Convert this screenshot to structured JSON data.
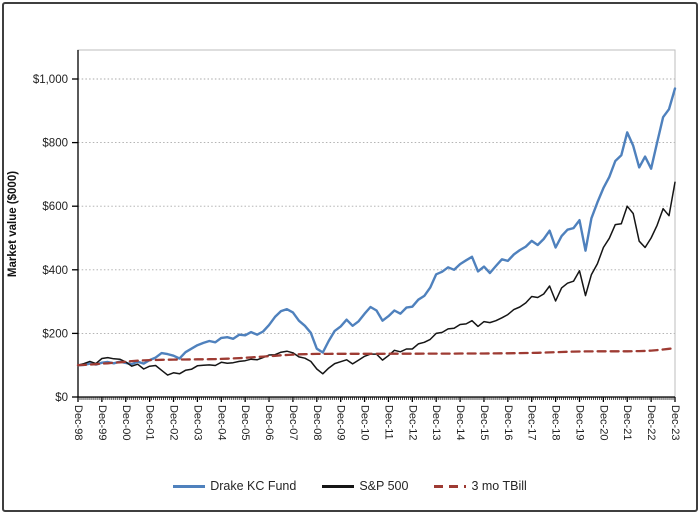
{
  "chart_data": {
    "type": "line",
    "title": "",
    "xlabel": "",
    "ylabel": "Market value ($000)",
    "ylim": [
      0,
      1100
    ],
    "grid": "horizontal-dotted",
    "legend_position": "bottom",
    "x_range": [
      "Dec-98",
      "Dec-23"
    ],
    "x_points_per_year": 4,
    "x_label_rotation": 90,
    "minor_ticks_per_major": 12,
    "y_ticks": [
      {
        "value": 0,
        "label": "$0"
      },
      {
        "value": 200,
        "label": "$200"
      },
      {
        "value": 400,
        "label": "$400"
      },
      {
        "value": 600,
        "label": "$600"
      },
      {
        "value": 800,
        "label": "$800"
      },
      {
        "value": 1000,
        "label": "$1,000"
      }
    ],
    "x_tick_labels": [
      "Dec-98",
      "Dec-99",
      "Dec-00",
      "Dec-01",
      "Dec-02",
      "Dec-03",
      "Dec-04",
      "Dec-05",
      "Dec-06",
      "Dec-07",
      "Dec-08",
      "Dec-09",
      "Dec-10",
      "Dec-11",
      "Dec-12",
      "Dec-13",
      "Dec-14",
      "Dec-15",
      "Dec-16",
      "Dec-17",
      "Dec-18",
      "Dec-19",
      "Dec-20",
      "Dec-21",
      "Dec-22",
      "Dec-23"
    ],
    "series": [
      {
        "name": "Drake KC Fund",
        "slug": "drake-kc-fund",
        "color": "#4F81BD",
        "line_style": "solid",
        "stroke_width": 2.4,
        "values": [
          100,
          101,
          105,
          102,
          108,
          110,
          106,
          111,
          107,
          103,
          111,
          105,
          116,
          124,
          138,
          135,
          130,
          121,
          141,
          152,
          163,
          170,
          176,
          172,
          186,
          188,
          183,
          196,
          194,
          204,
          196,
          206,
          226,
          252,
          270,
          276,
          266,
          240,
          224,
          202,
          152,
          140,
          176,
          208,
          222,
          243,
          224,
          238,
          262,
          283,
          272,
          240,
          254,
          272,
          262,
          281,
          284,
          306,
          318,
          344,
          386,
          394,
          408,
          400,
          418,
          430,
          441,
          395,
          410,
          390,
          412,
          433,
          428,
          448,
          462,
          473,
          491,
          478,
          497,
          523,
          470,
          506,
          526,
          531,
          556,
          460,
          562,
          612,
          657,
          692,
          742,
          760,
          832,
          790,
          722,
          756,
          718,
          800,
          880,
          905,
          970
        ]
      },
      {
        "name": "S&P 500",
        "slug": "sp-500",
        "color": "#151515",
        "line_style": "solid",
        "stroke_width": 1.5,
        "values": [
          100,
          105,
          112,
          105,
          121,
          124,
          120,
          119,
          110,
          97,
          103,
          88,
          97,
          99,
          84,
          69,
          76,
          73,
          84,
          87,
          98,
          100,
          101,
          99,
          109,
          106,
          108,
          112,
          114,
          119,
          117,
          124,
          132,
          133,
          141,
          144,
          139,
          126,
          122,
          112,
          88,
          73,
          91,
          105,
          111,
          117,
          104,
          116,
          128,
          135,
          135,
          116,
          130,
          147,
          142,
          151,
          151,
          167,
          172,
          181,
          200,
          203,
          214,
          216,
          228,
          230,
          240,
          222,
          237,
          234,
          240,
          249,
          259,
          275,
          283,
          296,
          316,
          313,
          324,
          349,
          302,
          343,
          358,
          364,
          397,
          319,
          385,
          419,
          470,
          499,
          542,
          545,
          600,
          577,
          490,
          470,
          500,
          540,
          592,
          570,
          675
        ]
      },
      {
        "name": "3 mo TBill",
        "slug": "3-mo-tbill",
        "color": "#9E3B33",
        "line_style": "dashed",
        "stroke_width": 2.3,
        "values": [
          100,
          101,
          102,
          103,
          105,
          106,
          108,
          109,
          111,
          113,
          114,
          115,
          116,
          116.5,
          117,
          117.3,
          117.6,
          117.8,
          118,
          118.2,
          118.4,
          118.6,
          118.9,
          119.3,
          119.8,
          120.5,
          121.3,
          122.3,
          123.4,
          124.5,
          125.7,
          127,
          128.4,
          129.7,
          131,
          132.2,
          133.4,
          134.2,
          134.7,
          135.1,
          135.4,
          135.5,
          135.6,
          135.7,
          135.7,
          135.8,
          135.8,
          135.9,
          135.9,
          136,
          136,
          136,
          136.1,
          136.1,
          136.2,
          136.2,
          136.3,
          136.3,
          136.4,
          136.4,
          136.5,
          136.5,
          136.6,
          136.6,
          136.7,
          136.7,
          136.8,
          136.8,
          136.9,
          137,
          137.1,
          137.3,
          137.5,
          137.7,
          138,
          138.3,
          138.7,
          139.1,
          139.6,
          140.2,
          140.9,
          141.6,
          142.2,
          142.7,
          143.1,
          143.4,
          143.5,
          143.6,
          143.6,
          143.6,
          143.7,
          143.7,
          143.8,
          143.9,
          144.2,
          144.9,
          146,
          147.5,
          149.3,
          151.5,
          154
        ]
      }
    ]
  }
}
